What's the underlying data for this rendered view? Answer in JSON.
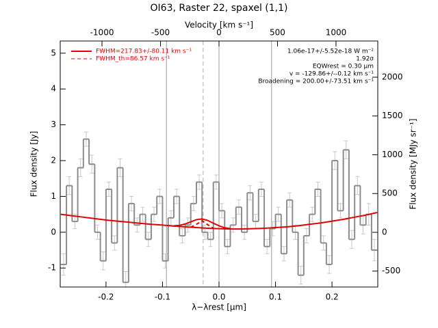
{
  "chart_data": {
    "type": "step",
    "title": "OI63, Raster 22, spaxel (1,1)",
    "x_label": "λ−λrest [μm]",
    "x2_label": "Velocity [km s⁻¹]",
    "y_label": "Flux density [Jy]",
    "y2_label": "Flux density [MJy sr⁻¹]",
    "annotations": [
      "1.06e-17+/-5.52e-18 W m⁻²",
      "1.92σ",
      "EQWrest = 0.30 μm",
      "v = -129.86+/--0.12 km s⁻¹",
      "Broadening = 200.00+/-73.51 km s⁻¹"
    ],
    "xlim": [
      -0.281,
      0.281
    ],
    "xticks": [
      -0.2,
      -0.1,
      {
        "value": 0,
        "label": "0.0"
      },
      0.1,
      0.2
    ],
    "x2lim": [
      -1357,
      1357
    ],
    "x2ticks": [
      -1000,
      -500,
      0,
      500,
      1000
    ],
    "ylim": [
      -1.53,
      5.34
    ],
    "yticks": [
      -1,
      0,
      1,
      2,
      3,
      4,
      5
    ],
    "y2lim": [
      -705,
      2467
    ],
    "y2ticks": [
      -500,
      0,
      500,
      1000,
      1500,
      2000
    ],
    "vlines": [
      -0.093,
      0,
      0.093
    ],
    "dashed_vline": -0.028,
    "legend": "upper left",
    "bin_width": 0.01,
    "x": [
      -0.275,
      -0.265,
      -0.255,
      -0.245,
      -0.235,
      -0.225,
      -0.215,
      -0.205,
      -0.195,
      -0.185,
      -0.175,
      -0.165,
      -0.155,
      -0.145,
      -0.135,
      -0.125,
      -0.115,
      -0.105,
      -0.095,
      -0.085,
      -0.075,
      -0.065,
      -0.055,
      -0.045,
      -0.035,
      -0.025,
      -0.015,
      -0.005,
      0.005,
      0.015,
      0.025,
      0.035,
      0.045,
      0.055,
      0.065,
      0.075,
      0.085,
      0.095,
      0.105,
      0.115,
      0.125,
      0.135,
      0.145,
      0.155,
      0.165,
      0.175,
      0.185,
      0.195,
      0.205,
      0.215,
      0.225,
      0.235,
      0.245,
      0.255,
      0.265,
      0.275
    ],
    "values": [
      -0.9,
      1.3,
      0.3,
      1.8,
      2.6,
      1.9,
      0.0,
      -0.8,
      1.2,
      -0.3,
      1.8,
      -1.4,
      0.8,
      0.2,
      0.5,
      -0.2,
      0.5,
      1.0,
      -0.8,
      0.4,
      1.0,
      -0.1,
      0.2,
      0.8,
      1.4,
      0.0,
      -0.2,
      1.4,
      0.6,
      -0.4,
      0.2,
      0.7,
      0.0,
      1.1,
      0.3,
      1.2,
      -0.4,
      0.1,
      0.5,
      -0.6,
      0.9,
      0.0,
      -1.2,
      -0.1,
      0.5,
      1.2,
      -0.3,
      -0.9,
      2.0,
      0.6,
      2.3,
      -0.2,
      1.3,
      0.2,
      0.5,
      -0.5
    ],
    "errors": [
      0.3,
      0.25,
      0.2,
      0.25,
      0.2,
      0.25,
      0.2,
      0.25,
      0.2,
      0.2,
      0.25,
      0.3,
      0.2,
      0.2,
      0.2,
      0.2,
      0.2,
      0.2,
      0.2,
      0.2,
      0.2,
      0.2,
      0.2,
      0.2,
      0.2,
      0.2,
      0.2,
      0.2,
      0.2,
      0.2,
      0.2,
      0.2,
      0.2,
      0.2,
      0.2,
      0.2,
      0.2,
      0.2,
      0.2,
      0.2,
      0.2,
      0.2,
      0.25,
      0.2,
      0.2,
      0.2,
      0.2,
      0.25,
      0.25,
      0.2,
      0.25,
      0.25,
      0.25,
      0.25,
      0.3,
      0.3
    ],
    "color": "#8c8c8c",
    "error_color": "#c8c8c8",
    "series": [
      {
        "name": "FWHM=217.83+/-80.11 km s⁻¹",
        "color": "#e00000",
        "dash": false,
        "x": [
          -0.08,
          -0.07,
          -0.06,
          -0.05,
          -0.04,
          -0.03,
          -0.02,
          -0.01,
          0.0,
          0.01,
          0.02
        ],
        "values": [
          0.18,
          0.19,
          0.23,
          0.29,
          0.35,
          0.37,
          0.33,
          0.25,
          0.18,
          0.125,
          0.1
        ]
      },
      {
        "name": "FWHM_th=86.57 km s⁻¹",
        "color": "#e00000",
        "dash": true,
        "x": [
          -0.05,
          -0.04,
          -0.03,
          -0.02,
          -0.01
        ],
        "values": [
          0.14,
          0.22,
          0.32,
          0.21,
          0.11
        ]
      },
      {
        "color": "#e00000",
        "dash": false,
        "x": [
          -0.28,
          -0.26,
          -0.24,
          -0.22,
          -0.2,
          -0.18,
          -0.16,
          -0.14,
          -0.12,
          -0.1,
          -0.08,
          -0.06,
          -0.04,
          -0.02,
          0.0,
          0.02,
          0.04,
          0.06,
          0.08,
          0.1,
          0.12,
          0.14,
          0.16,
          0.18,
          0.2,
          0.22,
          0.24,
          0.26,
          0.28
        ],
        "values": [
          0.5,
          0.46,
          0.42,
          0.38,
          0.34,
          0.31,
          0.28,
          0.25,
          0.22,
          0.2,
          0.17,
          0.15,
          0.13,
          0.11,
          0.1,
          0.09,
          0.09,
          0.1,
          0.11,
          0.13,
          0.15,
          0.18,
          0.22,
          0.26,
          0.31,
          0.36,
          0.42,
          0.48,
          0.55
        ]
      }
    ]
  }
}
